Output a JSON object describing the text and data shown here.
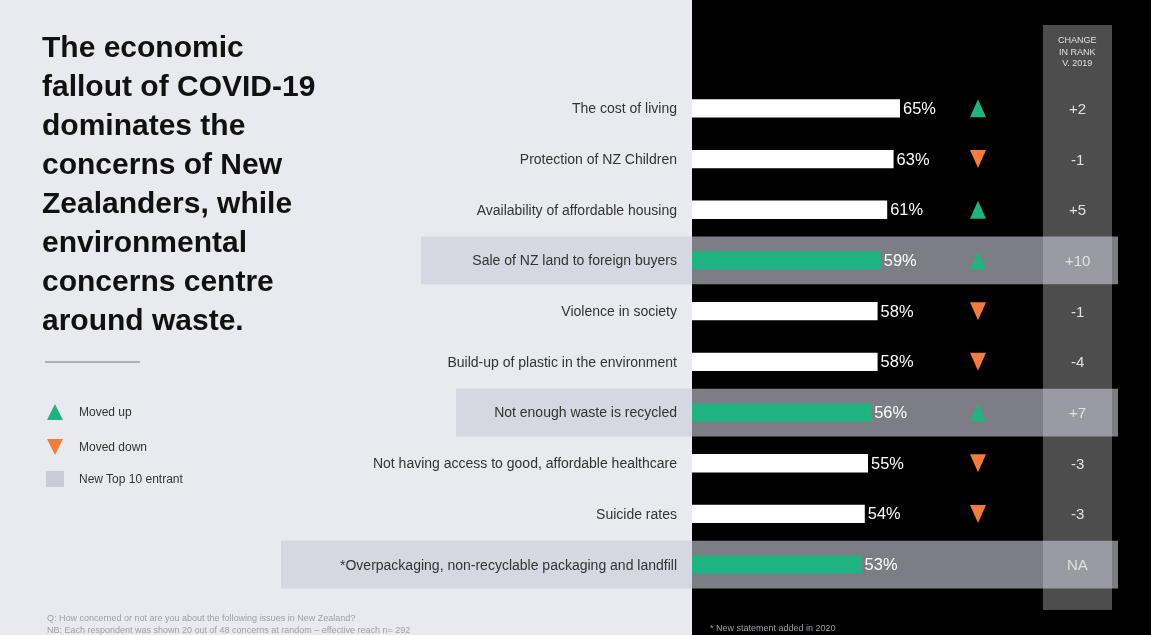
{
  "chart_data": [
    {
      "type": "bar",
      "orientation": "horizontal",
      "title": "The economic fallout of COVID-19 dominates the concerns of New Zealanders, while environmental concerns centre around waste.",
      "categories": [
        "The cost of living",
        "Protection of NZ Children",
        "Availability of affordable housing",
        "Sale of NZ land to foreign buyers",
        "Violence in society",
        "Build-up of plastic in the environment",
        "Not enough waste is recycled",
        "Not having access to good, affordable healthcare",
        "Suicide rates",
        "*Overpackaging, non-recyclable packaging and landfill"
      ],
      "tick_labels": "y",
      "colors": [
        "#ffffff",
        "#ffffff",
        "#ffffff",
        "#1fb381",
        "#ffffff",
        "#ffffff",
        "#1fb381",
        "#ffffff",
        "#ffffff",
        "#1fb381"
      ],
      "values": [
        65,
        63,
        61,
        59,
        58,
        58,
        56,
        55,
        54,
        53
      ],
      "value_labels": [
        "65%",
        "63%",
        "61%",
        "59%",
        "58%",
        "58%",
        "56%",
        "55%",
        "54%",
        "53%"
      ],
      "bands": [
        {
          "axis": "y",
          "from": "Sale of NZ land to foreign buyers",
          "to": "Sale of NZ land to foreign buyers",
          "color": "#c9ccd6"
        },
        {
          "axis": "y",
          "from": "Not enough waste is recycled",
          "to": "Not enough waste is recycled",
          "color": "#c9ccd6"
        },
        {
          "axis": "y",
          "from": "*Overpackaging, non-recyclable packaging and landfill",
          "to": "*Overpackaging, non-recyclable packaging and landfill",
          "color": "#c9ccd6"
        }
      ],
      "annotations": [
        "Q: How concerned or not are you about the following issues in New Zealand?",
        "NB: Each respondent was shown 20 out of 48 concerns at random – effective reach n= 292",
        "* New statement added in 2020",
        "Moved up",
        "Moved down",
        "New Top 10 entrant"
      ]
    },
    {
      "type": "heatmap",
      "categories": [
        "CHANGE IN RANK V. 2019"
      ],
      "y_categories": [
        null,
        null,
        null,
        null,
        null,
        null,
        null,
        null,
        null
      ],
      "cells": [
        [
          2
        ],
        [
          -1
        ],
        [
          5
        ],
        [
          10
        ],
        [
          -1
        ],
        [
          -4
        ],
        [
          7
        ],
        [
          -3
        ],
        [
          -3
        ]
      ],
      "cell_labels": [
        [
          "+2"
        ],
        [
          "-1"
        ],
        [
          "+5"
        ],
        [
          "+10"
        ],
        [
          "-1"
        ],
        [
          "-4"
        ],
        [
          "+7"
        ],
        [
          "-3"
        ],
        [
          "-3"
        ]
      ],
      "annotations": [
        "NA"
      ]
    }
  ]
}
